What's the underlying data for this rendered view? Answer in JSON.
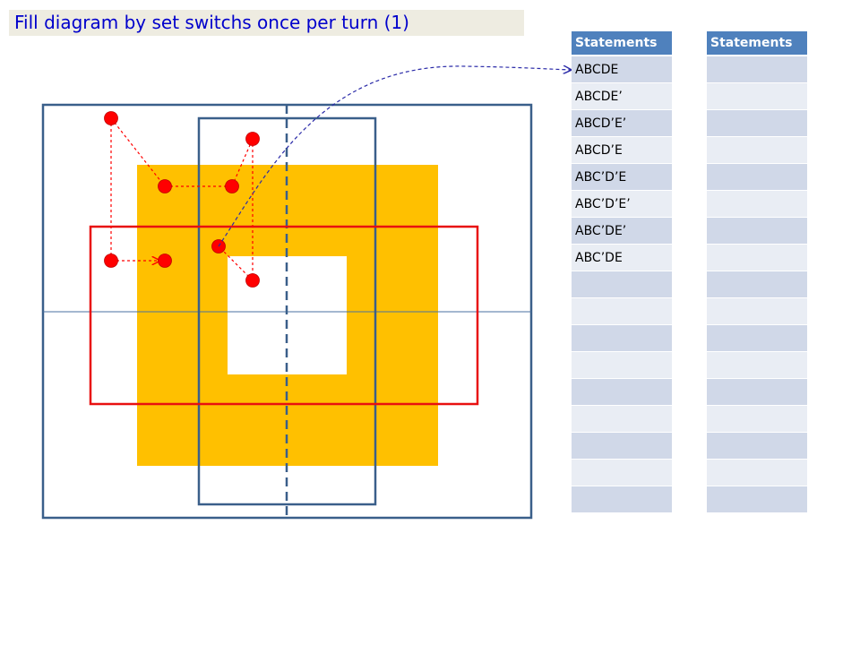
{
  "title": "Fill diagram by set switchs once per turn (1)",
  "colors": {
    "title_bg": "#eeece1",
    "title_text": "#0000cc",
    "outer_rect": "#3a5f8a",
    "inner_rect": "#3a5f8a",
    "red_rect": "#e81010",
    "fill": "#ffc000",
    "dot": "#ff0000",
    "arrow": "#2a2aa8",
    "header_bg": "#4f81bd",
    "row_odd": "#d0d8e8",
    "row_even": "#e9edf4"
  },
  "tables": [
    {
      "header": "Statements",
      "rows": [
        "ABCDE",
        "ABCDE’",
        "ABCD’E’",
        "ABCD’E",
        "ABC’D’E",
        "ABC’D’E’",
        "ABC’DE’",
        "ABC’DE",
        "",
        "",
        "",
        "",
        "",
        "",
        "",
        "",
        ""
      ]
    },
    {
      "header": "Statements",
      "rows": [
        "",
        "",
        "",
        "",
        "",
        "",
        "",
        "",
        "",
        "",
        "",
        "",
        "",
        "",
        "",
        "",
        ""
      ]
    }
  ]
}
